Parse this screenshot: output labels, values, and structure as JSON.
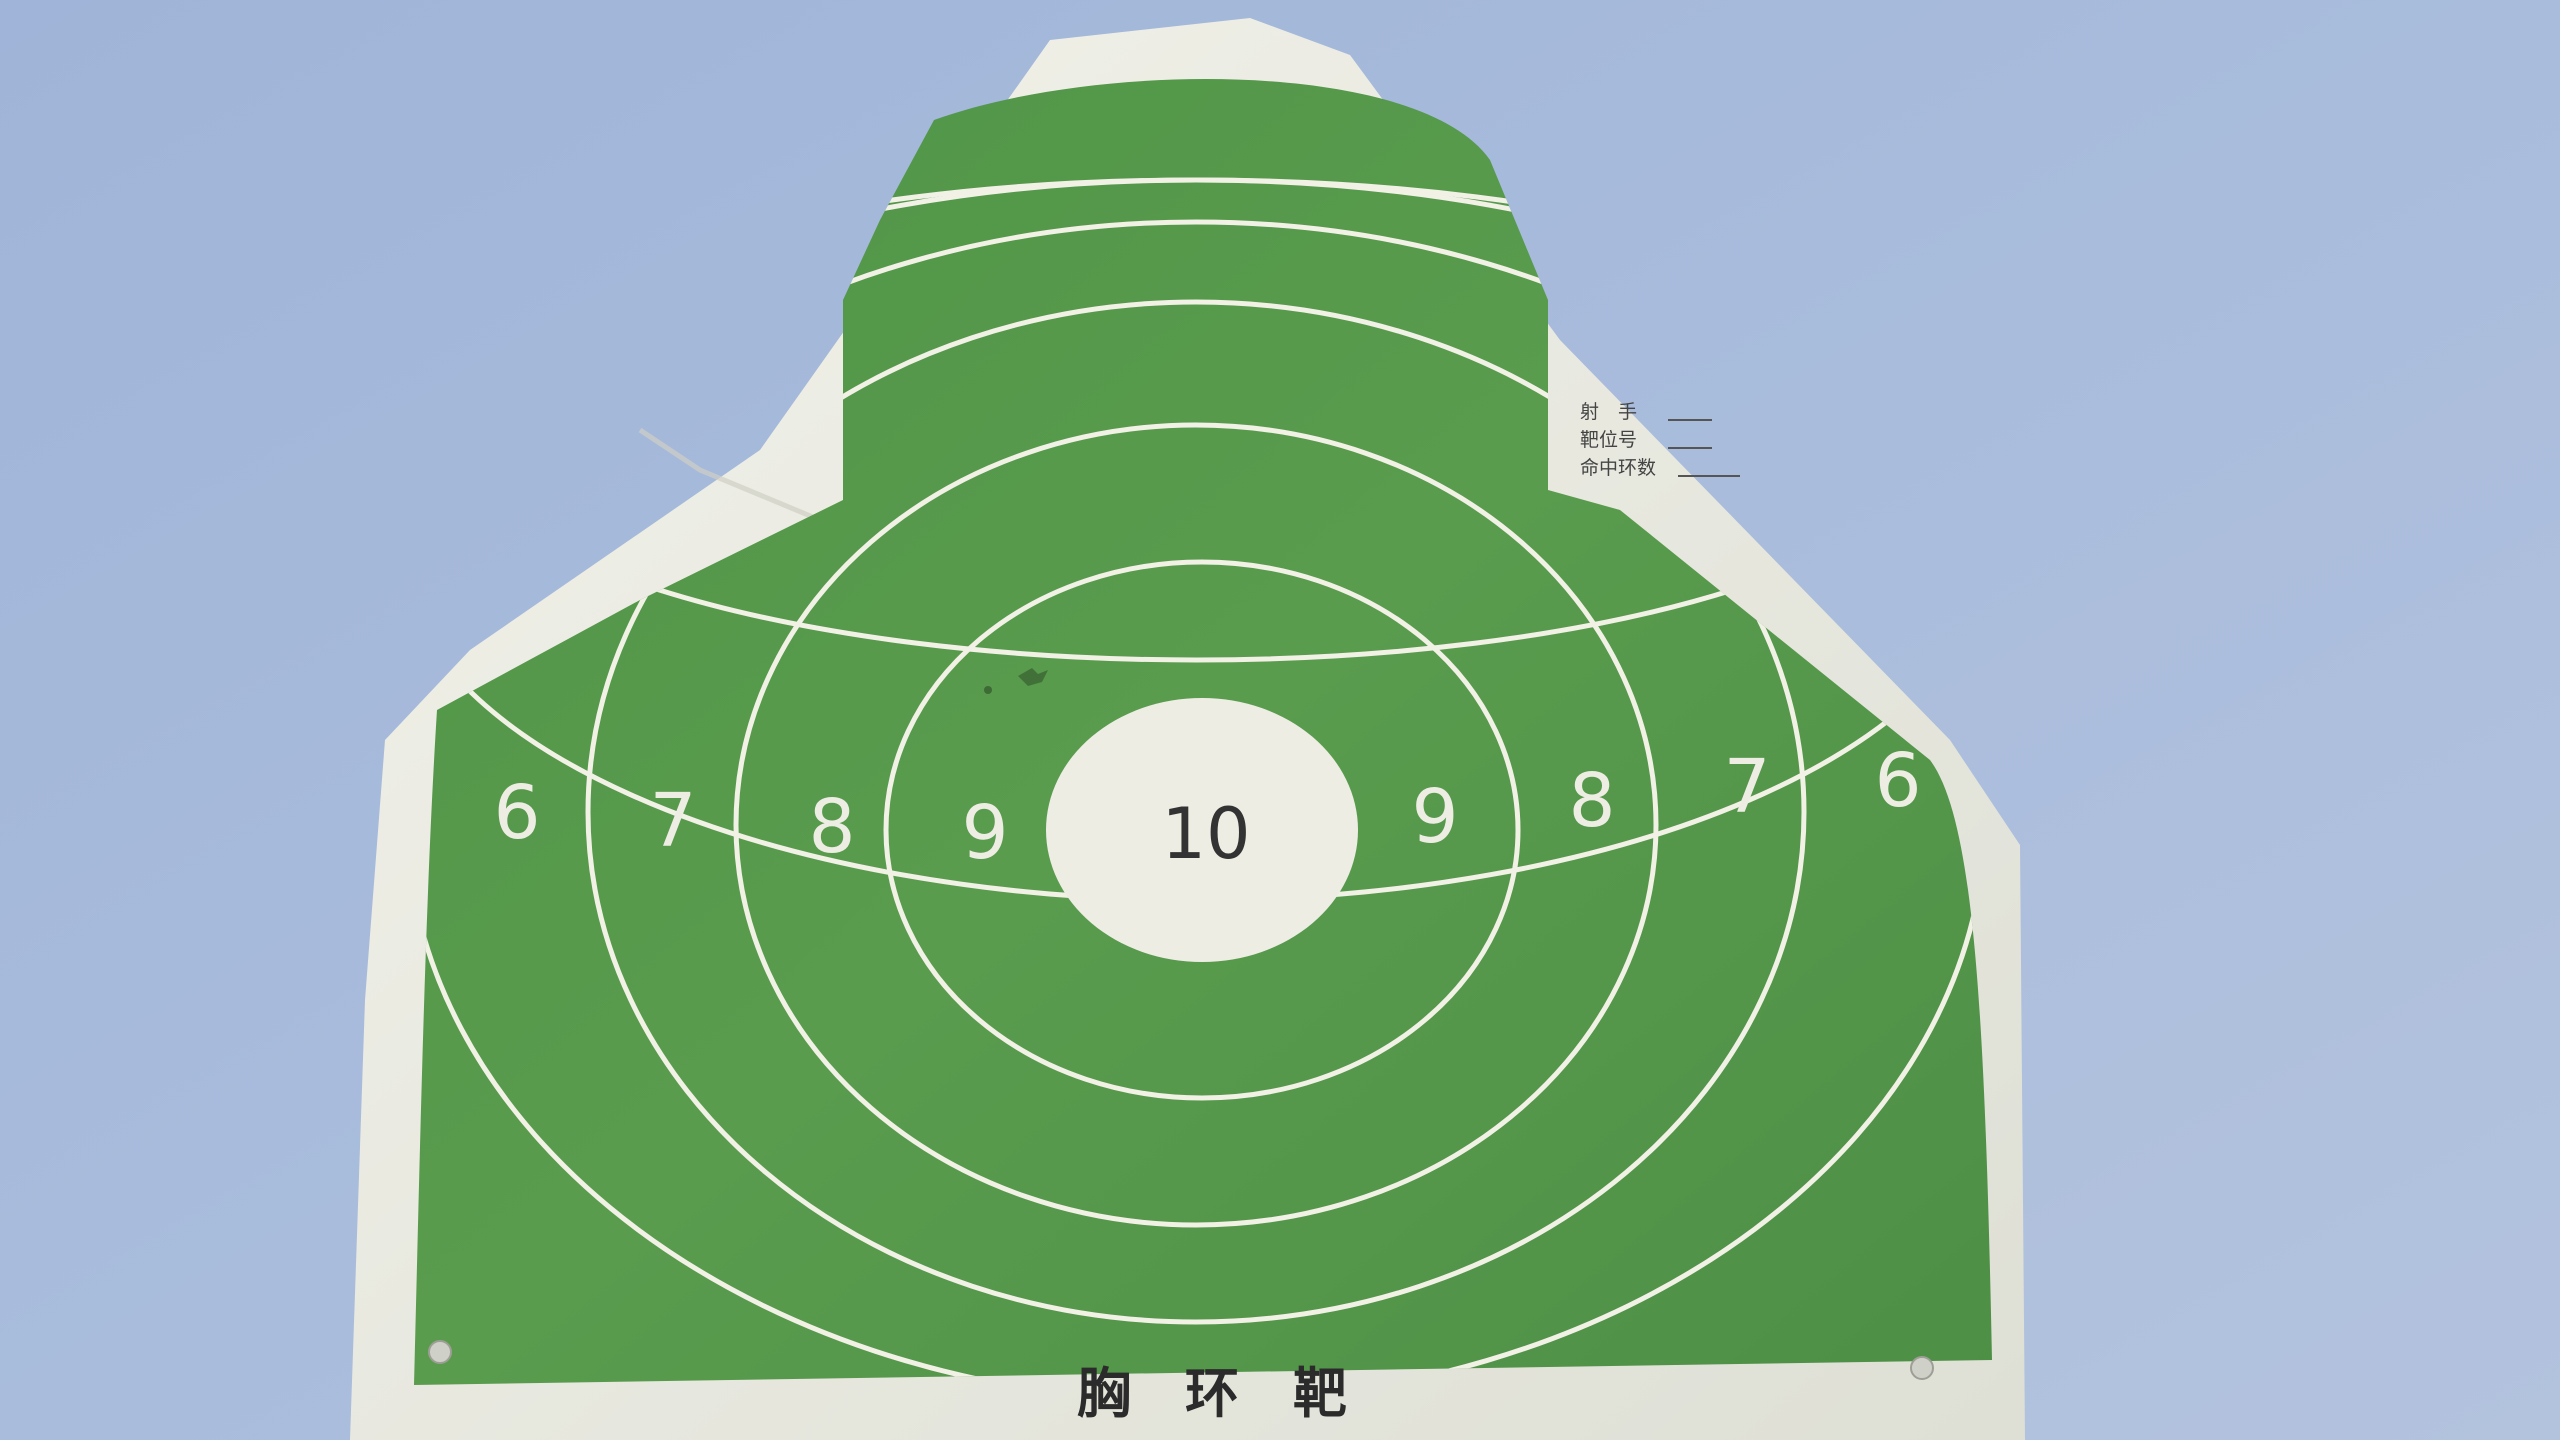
{
  "scene": {
    "sky_color": "#a9bcdc",
    "paper_color": "#ecece4",
    "green_color": "#5a9a4c",
    "line_color": "#f1f1e6"
  },
  "rings": {
    "left": [
      "6",
      "7",
      "8",
      "9"
    ],
    "center": "10",
    "right": [
      "9",
      "8",
      "7",
      "6"
    ]
  },
  "form": {
    "shooter_label": "射　手",
    "lane_label": "靶位号",
    "score_label": "命中环数"
  },
  "target_title": "胸　环　靶"
}
